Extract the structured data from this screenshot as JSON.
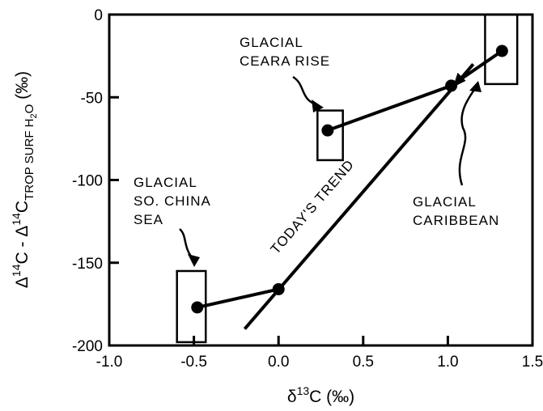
{
  "chart_data": {
    "type": "scatter",
    "title": "",
    "xlabel": {
      "main": "δ",
      "sup": "13",
      "rest": "C (‰)"
    },
    "ylabel": {
      "part1": "Δ",
      "sup1": "14",
      "part2": "C - Δ",
      "sup2": "14",
      "part3": "C",
      "sub": "TROP SURF H",
      "sub2": "2",
      "sub3": "O",
      "part4": " (‰)"
    },
    "xlim": [
      -1.0,
      1.5
    ],
    "ylim": [
      -200,
      0
    ],
    "xticks": [
      -1.0,
      -0.5,
      0.0,
      0.5,
      1.0,
      1.5
    ],
    "xtick_labels": [
      "-1.0",
      "-0.5",
      "0.0",
      "0.5",
      "1.0",
      "1.5"
    ],
    "yticks": [
      -200,
      -150,
      -100,
      -50,
      0
    ],
    "ytick_labels": [
      "-200",
      "-150",
      "-100",
      "-50",
      "0"
    ],
    "grid": false,
    "points": [
      {
        "id": "china-sea",
        "x": -0.48,
        "y": -177
      },
      {
        "id": "china-sea-today",
        "x": 0.0,
        "y": -166
      },
      {
        "id": "ceara",
        "x": 0.29,
        "y": -70
      },
      {
        "id": "ceara-today",
        "x": 1.02,
        "y": -43
      },
      {
        "id": "caribbean",
        "x": 1.32,
        "y": -22
      }
    ],
    "segments": [
      {
        "from": [
          -0.48,
          -177
        ],
        "to": [
          0.0,
          -166
        ]
      },
      {
        "from": [
          0.29,
          -70
        ],
        "to": [
          1.02,
          -43
        ]
      },
      {
        "from": [
          1.02,
          -43
        ],
        "to": [
          1.32,
          -22
        ]
      }
    ],
    "trend_line": {
      "from": [
        -0.2,
        -190
      ],
      "to": [
        1.15,
        -30
      ],
      "label": "TODAY'S TREND"
    },
    "boxes": [
      {
        "id": "box-china-sea",
        "x0": -0.6,
        "x1": -0.43,
        "y0": -198,
        "y1": -155
      },
      {
        "id": "box-ceara",
        "x0": 0.23,
        "x1": 0.38,
        "y0": -88,
        "y1": -58
      },
      {
        "id": "box-caribbean",
        "x0": 1.22,
        "x1": 1.41,
        "y0": -42,
        "y1": 0
      }
    ],
    "annotations": [
      {
        "id": "anno-china-sea",
        "lines": [
          "GLACIAL",
          "SO. CHINA",
          "SEA"
        ]
      },
      {
        "id": "anno-ceara",
        "lines": [
          "GLACIAL",
          "CEARA RISE"
        ]
      },
      {
        "id": "anno-caribbean",
        "lines": [
          "GLACIAL",
          "CARIBBEAN"
        ]
      }
    ]
  }
}
